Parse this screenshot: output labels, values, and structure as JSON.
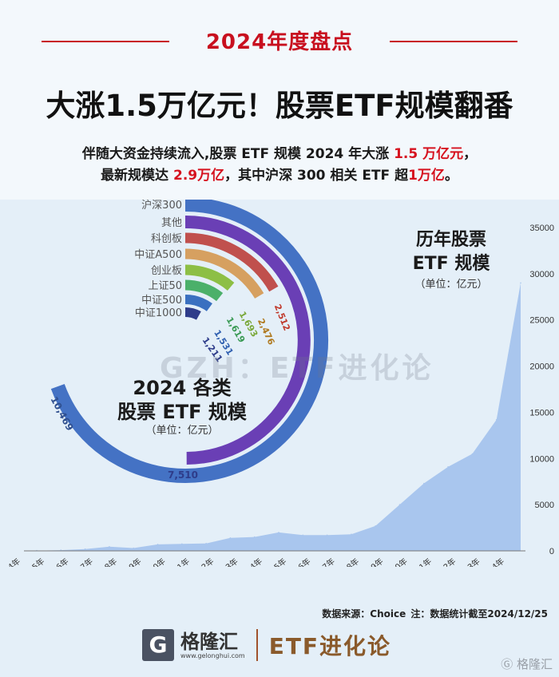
{
  "header": {
    "tag": "2024年度盘点",
    "title": "大涨1.5万亿元！股票ETF规模翻番",
    "subtitle_line1": [
      "伴随大资金持续流入,股票 ETF 规模 2024 年大涨 ",
      "1.5 万亿元",
      "，"
    ],
    "subtitle_line2": [
      "最新规模达 ",
      "2.9万亿",
      "，其中沪深 300 相关 ETF 超",
      "1万亿",
      "。"
    ]
  },
  "watermark": "GZH：ETF进化论",
  "chart_data": [
    {
      "type": "radial_bar",
      "title_line1": "2024 各类",
      "title_line2": "股票 ETF 规模",
      "unit": "（单位：亿元）",
      "categories": [
        "沪深300",
        "其他",
        "科创板",
        "中证A500",
        "创业板",
        "上证50",
        "中证500",
        "中证1000"
      ],
      "values": [
        10469,
        7510,
        2512,
        2476,
        1693,
        1619,
        1531,
        1211
      ],
      "value_labels": [
        "10,469",
        "7,510",
        "2,512",
        "2,476",
        "1,693",
        "1,619",
        "1,531",
        "1,211"
      ],
      "colors": [
        "#4472c4",
        "#6a3fb5",
        "#c0504d",
        "#d6a060",
        "#8dbf45",
        "#4bb06a",
        "#3a70c0",
        "#2e3c8a"
      ],
      "label_colors": [
        "#2f4f8f",
        "#2e3c8a",
        "#c0392b",
        "#b07a20",
        "#7aa83a",
        "#3a9a55",
        "#2f5fb0",
        "#2e3c8a"
      ]
    },
    {
      "type": "area",
      "title_line1": "历年股票",
      "title_line2": "ETF 规模",
      "unit": "（单位：亿元）",
      "x": [
        "2004年",
        "2005年",
        "2006年",
        "2007年",
        "2008年",
        "2009年",
        "2010年",
        "2011年",
        "2012年",
        "2013年",
        "2014年",
        "2015年",
        "2016年",
        "2017年",
        "2018年",
        "2019年",
        "2020年",
        "2021年",
        "2022年",
        "2023年",
        "2024年"
      ],
      "values": [
        30,
        80,
        200,
        450,
        300,
        700,
        750,
        800,
        1400,
        1500,
        2000,
        1700,
        1700,
        1800,
        2700,
        5000,
        7300,
        9100,
        10500,
        14200,
        29000
      ],
      "y_ticks": [
        "0",
        "5000",
        "10000",
        "15000",
        "20000",
        "25000",
        "30000",
        "35000"
      ],
      "ylim": [
        0,
        35000
      ],
      "color": "#a9c6ee"
    }
  ],
  "footer": {
    "source": "数据来源：Choice    注：数据统计截至2024/12/25",
    "brand_logo": "G",
    "brand_name": "格隆汇",
    "brand_url": "www.gelonghui.com",
    "brand_etf": "ETF进化论",
    "corner_watermark": "Ⓖ 格隆汇"
  }
}
